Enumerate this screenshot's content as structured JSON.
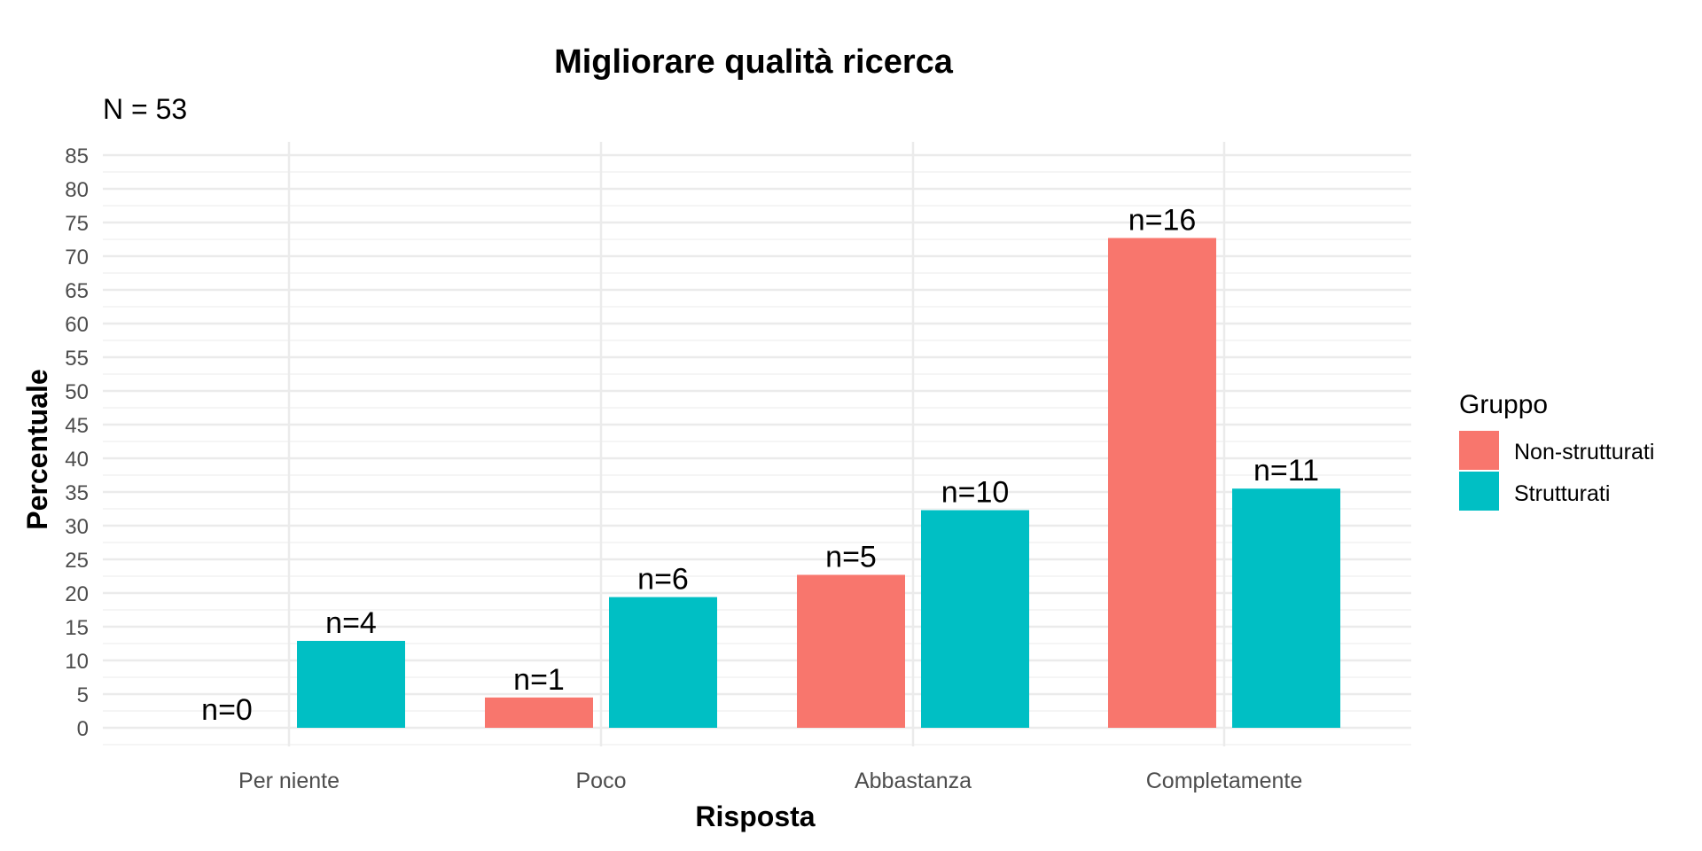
{
  "chart_data": {
    "type": "bar",
    "title": "Migliorare qualità ricerca",
    "subtitle": "N = 53",
    "xlabel": "Risposta",
    "ylabel": "Percentuale",
    "categories": [
      "Per niente",
      "Poco",
      "Abbastanza",
      "Completamente"
    ],
    "series": [
      {
        "name": "Non-strutturati",
        "color": "#F8766D",
        "values": [
          0,
          4.5,
          22.7,
          72.7
        ],
        "labels": [
          "n=0",
          "n=1",
          "n=5",
          "n=16"
        ]
      },
      {
        "name": "Strutturati",
        "color": "#00BFC4",
        "values": [
          12.9,
          19.4,
          32.3,
          35.5
        ],
        "labels": [
          "n=4",
          "n=6",
          "n=10",
          "n=11"
        ]
      }
    ],
    "ylim": [
      0,
      85
    ],
    "yticks": [
      0,
      5,
      10,
      15,
      20,
      25,
      30,
      35,
      40,
      45,
      50,
      55,
      60,
      65,
      70,
      75,
      80,
      85
    ],
    "grid": true,
    "legend": {
      "title": "Gruppo",
      "position": "right"
    }
  }
}
